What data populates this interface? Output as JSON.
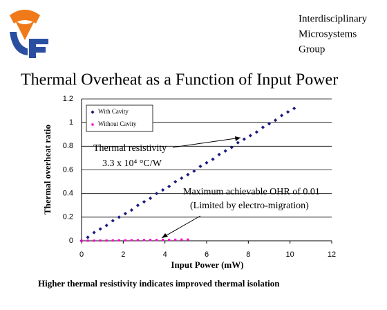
{
  "header": {
    "lines": [
      "Interdisciplinary",
      "Microsystems",
      "Group"
    ]
  },
  "chart_data": {
    "type": "scatter",
    "title": "Thermal Overheat as a Function of Input Power",
    "xlabel": "Input Power (mW)",
    "ylabel": "Thermal overheat ratio",
    "xlim": [
      0,
      12
    ],
    "xticks": [
      0,
      2,
      4,
      6,
      8,
      10,
      12
    ],
    "ylim": [
      0,
      1.2
    ],
    "yticks": [
      0,
      0.2,
      0.4,
      0.6,
      0.8,
      1,
      1.2
    ],
    "grid": "y",
    "legend": "upper left",
    "series": [
      {
        "name": "With Cavity",
        "color": "#1a1a80",
        "marker": "diamond",
        "x": [
          0,
          0.3,
          0.6,
          0.9,
          1.2,
          1.5,
          1.8,
          2.1,
          2.4,
          2.7,
          3,
          3.3,
          3.6,
          3.9,
          4.2,
          4.5,
          4.8,
          5.1,
          5.4,
          5.7,
          6,
          6.3,
          6.6,
          6.9,
          7.2,
          7.5,
          7.8,
          8.1,
          8.4,
          8.7,
          9,
          9.3,
          9.6,
          9.9,
          10.2
        ],
        "values": [
          0,
          0.03,
          0.07,
          0.1,
          0.13,
          0.17,
          0.2,
          0.23,
          0.26,
          0.3,
          0.33,
          0.36,
          0.4,
          0.43,
          0.46,
          0.5,
          0.53,
          0.56,
          0.59,
          0.63,
          0.66,
          0.69,
          0.73,
          0.76,
          0.79,
          0.83,
          0.86,
          0.89,
          0.92,
          0.96,
          0.99,
          1.02,
          1.06,
          1.09,
          1.12
        ]
      },
      {
        "name": "Without Cavity",
        "color": "#ff00cc",
        "marker": "square",
        "x": [
          0,
          0.3,
          0.6,
          0.9,
          1.2,
          1.5,
          1.8,
          2.1,
          2.4,
          2.7,
          3,
          3.3,
          3.6,
          3.9,
          4.2,
          4.5,
          4.8,
          5.1
        ],
        "values": [
          0,
          0.001,
          0.001,
          0.002,
          0.002,
          0.003,
          0.004,
          0.004,
          0.005,
          0.005,
          0.006,
          0.007,
          0.007,
          0.008,
          0.008,
          0.009,
          0.01,
          0.01
        ]
      }
    ],
    "annotations": [
      "Thermal resistivity",
      "3.3 x 10⁴ °C/W",
      "Maximum achievable OHR of 0.01",
      "(Limited by electro-migration)"
    ]
  },
  "footer": "Higher thermal resistivity indicates improved thermal isolation"
}
